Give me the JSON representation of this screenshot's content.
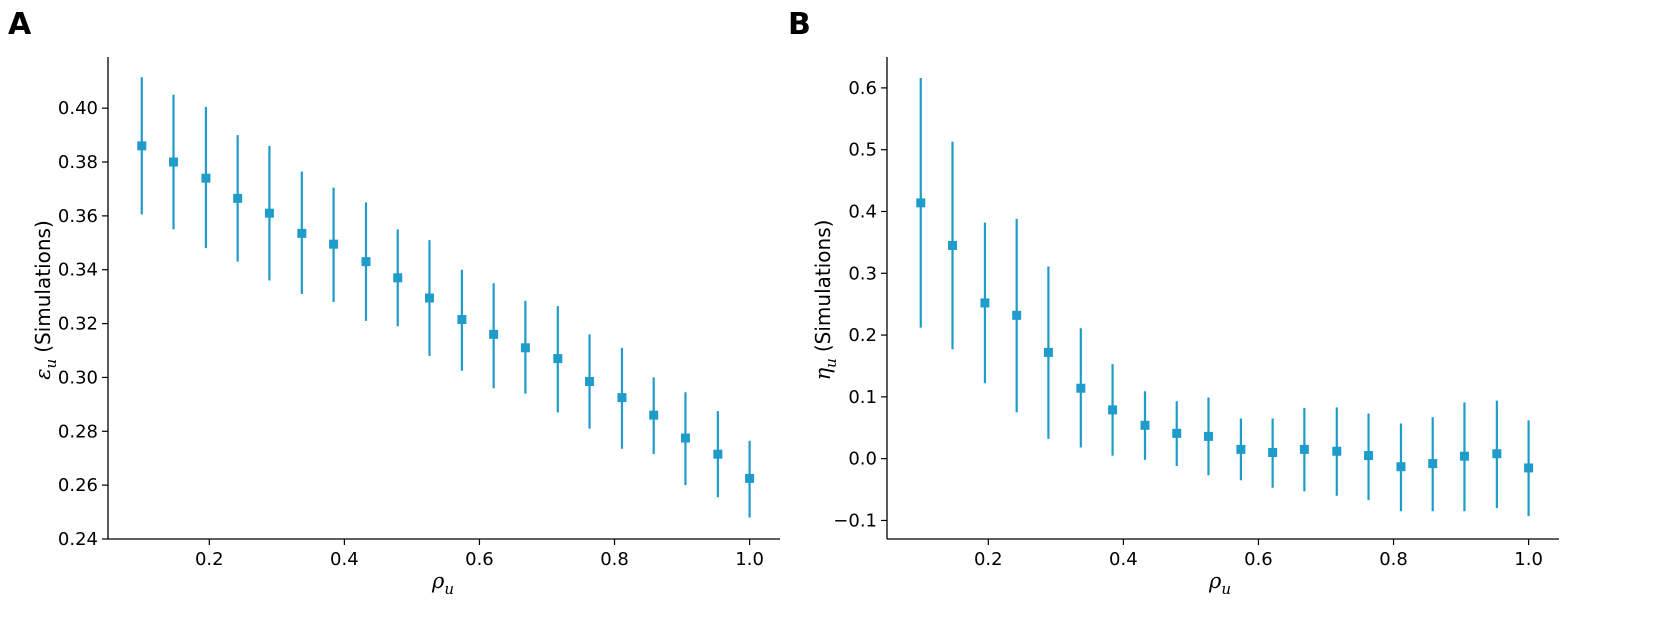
{
  "chart_data": [
    {
      "panel_label": "A",
      "type": "scatter",
      "marker": "square",
      "error_bars": true,
      "color": "#1f9cc9",
      "xlabel_symbol": "ρ",
      "xlabel_sub": "u",
      "ylabel_symbol": "ε",
      "ylabel_sub": "u",
      "ylabel_text": "(Simulations)",
      "xlim": [
        0.05,
        1.045
      ],
      "ylim": [
        0.24,
        0.419
      ],
      "xticks": [
        0.2,
        0.4,
        0.6,
        0.8,
        1.0
      ],
      "xtick_labels": [
        "0.2",
        "0.4",
        "0.6",
        "0.8",
        "1.0"
      ],
      "yticks": [
        0.24,
        0.26,
        0.28,
        0.3,
        0.32,
        0.34,
        0.36,
        0.38,
        0.4
      ],
      "ytick_labels": [
        "0.24",
        "0.26",
        "0.28",
        "0.30",
        "0.32",
        "0.34",
        "0.36",
        "0.38",
        "0.40"
      ],
      "x": [
        0.1,
        0.147,
        0.195,
        0.242,
        0.289,
        0.337,
        0.384,
        0.432,
        0.479,
        0.526,
        0.574,
        0.621,
        0.668,
        0.716,
        0.763,
        0.811,
        0.858,
        0.905,
        0.953,
        1.0
      ],
      "y": [
        0.386,
        0.38,
        0.374,
        0.3665,
        0.361,
        0.3535,
        0.3495,
        0.343,
        0.337,
        0.3295,
        0.3215,
        0.316,
        0.311,
        0.307,
        0.2985,
        0.2925,
        0.286,
        0.2775,
        0.2715,
        0.2625
      ],
      "y_low": [
        0.3605,
        0.355,
        0.348,
        0.343,
        0.336,
        0.331,
        0.328,
        0.321,
        0.319,
        0.308,
        0.3025,
        0.296,
        0.294,
        0.287,
        0.281,
        0.2735,
        0.2715,
        0.26,
        0.2555,
        0.248
      ],
      "y_high": [
        0.4115,
        0.405,
        0.4005,
        0.39,
        0.386,
        0.3765,
        0.3705,
        0.365,
        0.355,
        0.351,
        0.34,
        0.335,
        0.3285,
        0.3265,
        0.316,
        0.311,
        0.3,
        0.2945,
        0.2875,
        0.2765
      ]
    },
    {
      "panel_label": "B",
      "type": "scatter",
      "marker": "square",
      "error_bars": true,
      "color": "#1f9cc9",
      "xlabel_symbol": "ρ",
      "xlabel_sub": "u",
      "ylabel_symbol": "η",
      "ylabel_sub": "u",
      "ylabel_text": "(Simulations)",
      "xlim": [
        0.05,
        1.045
      ],
      "ylim": [
        -0.13,
        0.65
      ],
      "xticks": [
        0.2,
        0.4,
        0.6,
        0.8,
        1.0
      ],
      "xtick_labels": [
        "0.2",
        "0.4",
        "0.6",
        "0.8",
        "1.0"
      ],
      "yticks": [
        -0.1,
        0.0,
        0.1,
        0.2,
        0.3,
        0.4,
        0.5,
        0.6
      ],
      "ytick_labels": [
        "−0.1",
        "0.0",
        "0.1",
        "0.2",
        "0.3",
        "0.4",
        "0.5",
        "0.6"
      ],
      "x": [
        0.1,
        0.147,
        0.195,
        0.242,
        0.289,
        0.337,
        0.384,
        0.432,
        0.479,
        0.526,
        0.574,
        0.621,
        0.668,
        0.716,
        0.763,
        0.811,
        0.858,
        0.905,
        0.953,
        1.0
      ],
      "y": [
        0.414,
        0.345,
        0.252,
        0.232,
        0.172,
        0.114,
        0.079,
        0.054,
        0.041,
        0.036,
        0.015,
        0.01,
        0.015,
        0.012,
        0.005,
        -0.013,
        -0.008,
        0.004,
        0.008,
        -0.015
      ],
      "y_low": [
        0.212,
        0.177,
        0.122,
        0.075,
        0.032,
        0.018,
        0.005,
        -0.002,
        -0.012,
        -0.027,
        -0.035,
        -0.047,
        -0.053,
        -0.06,
        -0.067,
        -0.085,
        -0.085,
        -0.085,
        -0.08,
        -0.093
      ],
      "y_high": [
        0.616,
        0.513,
        0.382,
        0.388,
        0.311,
        0.211,
        0.153,
        0.109,
        0.093,
        0.099,
        0.065,
        0.065,
        0.082,
        0.083,
        0.073,
        0.057,
        0.067,
        0.091,
        0.094,
        0.062
      ]
    }
  ]
}
